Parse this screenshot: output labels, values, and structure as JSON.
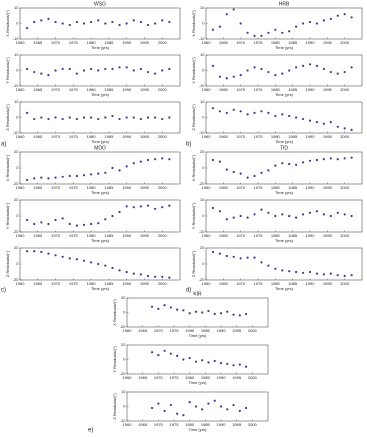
{
  "chart_data": [
    {
      "type": "scatter",
      "title": "WSG",
      "ylabel": "X Residuals/(″)",
      "xlabel": "Time (yrs)",
      "color": "#3b3b8f",
      "x": [
        1962,
        1964,
        1966,
        1968,
        1970,
        1972,
        1974,
        1976,
        1978,
        1980,
        1982,
        1984,
        1986,
        1988,
        1990,
        1992,
        1994,
        1996,
        1998,
        2000,
        2002
      ],
      "values": [
        -3,
        1,
        2,
        3,
        1,
        0,
        -1,
        1,
        0,
        1,
        2,
        0,
        1,
        -1,
        0,
        2,
        1,
        -1,
        0,
        2,
        1
      ],
      "xlim": [
        1960,
        2005
      ],
      "xticks": [
        1960,
        1965,
        1970,
        1975,
        1980,
        1985,
        1990,
        1995,
        2000
      ],
      "ylim": [
        -10,
        10
      ],
      "yticks": [
        -10,
        0,
        10
      ]
    },
    {
      "type": "scatter",
      "ylabel": "Y Residuals/(″)",
      "xlabel": "Time (yrs)",
      "color": "#3b3b8f",
      "x": [
        1962,
        1964,
        1966,
        1968,
        1970,
        1972,
        1974,
        1976,
        1978,
        1980,
        1982,
        1984,
        1986,
        1988,
        1990,
        1992,
        1994,
        1996,
        1998,
        2000,
        2002
      ],
      "values": [
        1,
        -1,
        -2,
        -3,
        0,
        1,
        1,
        -2,
        0,
        1,
        0,
        1,
        1,
        2,
        2,
        0,
        1,
        -1,
        -2,
        0,
        1
      ],
      "xlim": [
        1960,
        2005
      ],
      "xticks": [
        1960,
        1965,
        1970,
        1975,
        1980,
        1985,
        1990,
        1995,
        2000
      ],
      "ylim": [
        -10,
        10
      ],
      "yticks": [
        -10,
        0,
        10
      ]
    },
    {
      "type": "scatter",
      "panel": "a)",
      "ylabel": "Z Residuals/(″)",
      "xlabel": "Time (yrs)",
      "color": "#3b3b8f",
      "x": [
        1962,
        1964,
        1966,
        1968,
        1970,
        1972,
        1974,
        1976,
        1978,
        1980,
        1982,
        1984,
        1986,
        1988,
        1990,
        1992,
        1994,
        1996,
        1998,
        2000,
        2002
      ],
      "values": [
        3,
        -1,
        0,
        -1,
        0,
        -1,
        0,
        -1,
        0,
        0,
        -1,
        0,
        1,
        -1,
        0,
        0,
        -1,
        0,
        0,
        -1,
        0
      ],
      "xlim": [
        1960,
        2005
      ],
      "xticks": [
        1960,
        1965,
        1970,
        1975,
        1980,
        1985,
        1990,
        1995,
        2000
      ],
      "ylim": [
        -10,
        10
      ],
      "yticks": [
        -10,
        0,
        10
      ]
    },
    {
      "type": "scatter",
      "title": "HRB",
      "ylabel": "X Residuals/(″)",
      "xlabel": "Time (yrs)",
      "color": "#3b3b8f",
      "x": [
        1962,
        1964,
        1966,
        1968,
        1970,
        1972,
        1974,
        1976,
        1978,
        1980,
        1982,
        1984,
        1986,
        1988,
        1990,
        1992,
        1994,
        1996,
        1998,
        2000,
        2002
      ],
      "values": [
        -4,
        -2,
        6,
        9,
        0,
        -6,
        -8,
        -8,
        -6,
        -4,
        -6,
        -5,
        -2,
        0,
        1,
        0,
        2,
        3,
        5,
        6,
        4
      ],
      "xlim": [
        1960,
        2005
      ],
      "xticks": [
        1960,
        1965,
        1970,
        1975,
        1980,
        1985,
        1990,
        1995,
        2000
      ],
      "ylim": [
        -10,
        10
      ],
      "yticks": [
        -10,
        0,
        10
      ]
    },
    {
      "type": "scatter",
      "ylabel": "Y Residuals/(″)",
      "xlabel": "Time (yrs)",
      "color": "#3b3b8f",
      "x": [
        1962,
        1964,
        1966,
        1968,
        1970,
        1972,
        1974,
        1976,
        1978,
        1980,
        1982,
        1984,
        1986,
        1988,
        1990,
        1992,
        1994,
        1996,
        1998,
        2000,
        2002
      ],
      "values": [
        3,
        -4,
        -5,
        -4,
        -3,
        0,
        2,
        1,
        -1,
        -3,
        -2,
        0,
        2,
        3,
        4,
        3,
        1,
        -1,
        -2,
        -1,
        2
      ],
      "xlim": [
        1960,
        2005
      ],
      "xticks": [
        1960,
        1965,
        1970,
        1975,
        1980,
        1985,
        1990,
        1995,
        2000
      ],
      "ylim": [
        -10,
        10
      ],
      "yticks": [
        -10,
        0,
        10
      ]
    },
    {
      "type": "scatter",
      "panel": "b)",
      "ylabel": "Z Residuals/(″)",
      "xlabel": "Time (yrs)",
      "color": "#3b3b8f",
      "x": [
        1962,
        1964,
        1966,
        1968,
        1970,
        1972,
        1974,
        1976,
        1978,
        1980,
        1982,
        1984,
        1986,
        1988,
        1990,
        1992,
        1994,
        1996,
        1998,
        2000,
        2002
      ],
      "values": [
        6,
        4,
        3,
        5,
        4,
        2,
        3,
        4,
        3,
        1,
        2,
        1,
        0,
        -1,
        -2,
        -3,
        -4,
        -3,
        -6,
        -7,
        -8
      ],
      "xlim": [
        1960,
        2005
      ],
      "xticks": [
        1960,
        1965,
        1970,
        1975,
        1980,
        1985,
        1990,
        1995,
        2000
      ],
      "ylim": [
        -10,
        10
      ],
      "yticks": [
        -10,
        0,
        10
      ]
    },
    {
      "type": "scatter",
      "title": "MDO",
      "ylabel": "X Residuals/(″)",
      "xlabel": "Time (yrs)",
      "color": "#3b3b8f",
      "x": [
        1962,
        1964,
        1966,
        1968,
        1970,
        1972,
        1974,
        1976,
        1978,
        1980,
        1982,
        1984,
        1986,
        1988,
        1990,
        1992,
        1994,
        1996,
        1998,
        2000,
        2002
      ],
      "values": [
        -15,
        -13,
        -12,
        -13,
        -12,
        -11,
        -10,
        -10,
        -9,
        -8,
        -7,
        -6,
        0,
        -3,
        2,
        6,
        8,
        10,
        11,
        12,
        11
      ],
      "xlim": [
        1960,
        2005
      ],
      "xticks": [
        1960,
        1965,
        1970,
        1975,
        1980,
        1985,
        1990,
        1995,
        2000
      ],
      "ylim": [
        -20,
        20
      ],
      "yticks": [
        -20,
        0,
        20
      ]
    },
    {
      "type": "scatter",
      "ylabel": "Y Residuals/(″)",
      "xlabel": "Time (yrs)",
      "color": "#3b3b8f",
      "x": [
        1962,
        1964,
        1966,
        1968,
        1970,
        1972,
        1974,
        1976,
        1978,
        1980,
        1982,
        1984,
        1986,
        1988,
        1990,
        1992,
        1994,
        1996,
        1998,
        2000,
        2002
      ],
      "values": [
        -5,
        -10,
        -8,
        -10,
        -5,
        -3,
        -10,
        -12,
        -11,
        -10,
        -9,
        -4,
        0,
        5,
        12,
        11,
        12,
        13,
        9,
        11,
        13
      ],
      "xlim": [
        1960,
        2005
      ],
      "xticks": [
        1960,
        1965,
        1970,
        1975,
        1980,
        1985,
        1990,
        1995,
        2000
      ],
      "ylim": [
        -20,
        20
      ],
      "yticks": [
        -20,
        0,
        20
      ]
    },
    {
      "type": "scatter",
      "panel": "c)",
      "ylabel": "Z Residuals/(″)",
      "xlabel": "Time (yrs)",
      "color": "#3b3b8f",
      "x": [
        1962,
        1964,
        1966,
        1968,
        1970,
        1972,
        1974,
        1976,
        1978,
        1980,
        1982,
        1984,
        1986,
        1988,
        1990,
        1992,
        1994,
        1996,
        1998,
        2000,
        2002
      ],
      "values": [
        16,
        16,
        15,
        13,
        11,
        9,
        7,
        6,
        4,
        2,
        0,
        -2,
        -5,
        -8,
        -10,
        -12,
        -13,
        -15,
        -16,
        -16,
        -17
      ],
      "xlim": [
        1960,
        2005
      ],
      "xticks": [
        1960,
        1965,
        1970,
        1975,
        1980,
        1985,
        1990,
        1995,
        2000
      ],
      "ylim": [
        -20,
        20
      ],
      "yticks": [
        -20,
        0,
        20
      ]
    },
    {
      "type": "scatter",
      "title": "TID",
      "ylabel": "X Residuals/(″)",
      "xlabel": "Time (yrs)",
      "color": "#3b3b8f",
      "x": [
        1962,
        1964,
        1966,
        1968,
        1970,
        1972,
        1974,
        1976,
        1978,
        1980,
        1982,
        1984,
        1986,
        1988,
        1990,
        1992,
        1994,
        1996,
        1998,
        2000,
        2002
      ],
      "values": [
        10,
        8,
        -2,
        -5,
        -7,
        -12,
        -10,
        -6,
        -3,
        3,
        6,
        5,
        4,
        7,
        9,
        10,
        11,
        12,
        11,
        12,
        13
      ],
      "xlim": [
        1960,
        2005
      ],
      "xticks": [
        1960,
        1965,
        1970,
        1975,
        1980,
        1985,
        1990,
        1995,
        2000
      ],
      "ylim": [
        -20,
        20
      ],
      "yticks": [
        -20,
        0,
        20
      ]
    },
    {
      "type": "scatter",
      "ylabel": "Y Residuals/(″)",
      "xlabel": "Time (yrs)",
      "color": "#3b3b8f",
      "x": [
        1962,
        1964,
        1966,
        1968,
        1970,
        1972,
        1974,
        1976,
        1978,
        1980,
        1982,
        1984,
        1986,
        1988,
        1990,
        1992,
        1994,
        1996,
        1998,
        2000,
        2002
      ],
      "values": [
        5,
        3,
        -2,
        -1,
        0,
        -1,
        1,
        4,
        2,
        0,
        1,
        0,
        -1,
        1,
        2,
        3,
        1,
        0,
        2,
        1,
        0
      ],
      "xlim": [
        1960,
        2005
      ],
      "xticks": [
        1960,
        1965,
        1970,
        1975,
        1980,
        1985,
        1990,
        1995,
        2000
      ],
      "ylim": [
        -10,
        10
      ],
      "yticks": [
        -10,
        0,
        10
      ]
    },
    {
      "type": "scatter",
      "panel": "d)",
      "ylabel": "Z Residuals/(″)",
      "xlabel": "Time (yrs)",
      "color": "#3b3b8f",
      "x": [
        1962,
        1964,
        1966,
        1968,
        1970,
        1972,
        1974,
        1976,
        1978,
        1980,
        1982,
        1984,
        1986,
        1988,
        1990,
        1992,
        1994,
        1996,
        1998,
        2000,
        2002
      ],
      "values": [
        15,
        13,
        10,
        9,
        7,
        8,
        8,
        2,
        -2,
        -6,
        -8,
        -9,
        -10,
        -11,
        -10,
        -12,
        -13,
        -12,
        -14,
        -15,
        -14
      ],
      "xlim": [
        1960,
        2005
      ],
      "xticks": [
        1960,
        1965,
        1970,
        1975,
        1980,
        1985,
        1990,
        1995,
        2000
      ],
      "ylim": [
        -20,
        20
      ],
      "yticks": [
        -20,
        0,
        20
      ]
    },
    {
      "type": "scatter",
      "title": "KIR",
      "ylabel": "X Residuals/(″)",
      "xlabel": "Time (yrs)",
      "color": "#3b3b8f",
      "x": [
        1962,
        1964,
        1966,
        1968,
        1970,
        1972,
        1974,
        1976,
        1978,
        1980,
        1982,
        1984,
        1986,
        1988,
        1990,
        1992,
        1994,
        1996,
        1998,
        2000,
        2002
      ],
      "values": [
        null,
        null,
        null,
        8,
        5,
        10,
        7,
        4,
        3,
        -1,
        1,
        0,
        2,
        -2,
        -1,
        1,
        -3,
        -4,
        -2,
        null,
        null
      ],
      "xlim": [
        1960,
        2005
      ],
      "xticks": [
        1960,
        1965,
        1970,
        1975,
        1980,
        1985,
        1990,
        1995,
        2000
      ],
      "ylim": [
        -20,
        20
      ],
      "yticks": [
        -20,
        0,
        20
      ]
    },
    {
      "type": "scatter",
      "ylabel": "Y Residuals/(″)",
      "xlabel": "Time (yrs)",
      "color": "#3b3b8f",
      "x": [
        1962,
        1964,
        1966,
        1968,
        1970,
        1972,
        1974,
        1976,
        1978,
        1980,
        1982,
        1984,
        1986,
        1988,
        1990,
        1992,
        1994,
        1996,
        1998,
        2000,
        2002
      ],
      "values": [
        null,
        null,
        null,
        10,
        6,
        12,
        8,
        5,
        0,
        2,
        -3,
        -1,
        -4,
        -2,
        -5,
        -6,
        -8,
        -7,
        -10,
        null,
        null
      ],
      "xlim": [
        1960,
        2005
      ],
      "xticks": [
        1960,
        1965,
        1970,
        1975,
        1980,
        1985,
        1990,
        1995,
        2000
      ],
      "ylim": [
        -20,
        20
      ],
      "yticks": [
        -20,
        0,
        20
      ]
    },
    {
      "type": "scatter",
      "panel": "e)",
      "ylabel": "Z Residuals/(″)",
      "xlabel": "Time (yrs)",
      "color": "#3b3b8f",
      "x": [
        1962,
        1964,
        1966,
        1968,
        1970,
        1972,
        1974,
        1976,
        1978,
        1980,
        1982,
        1984,
        1986,
        1988,
        1990,
        1992,
        1994,
        1996,
        1998,
        2000,
        2002
      ],
      "values": [
        null,
        null,
        null,
        -1,
        2,
        -3,
        1,
        -5,
        -6,
        3,
        0,
        -2,
        2,
        4,
        0,
        -2,
        1,
        -3,
        -1,
        null,
        null
      ],
      "xlim": [
        1960,
        2005
      ],
      "xticks": [
        1960,
        1965,
        1970,
        1975,
        1980,
        1985,
        1990,
        1995,
        2000
      ],
      "ylim": [
        -10,
        10
      ],
      "yticks": [
        -10,
        0,
        10
      ]
    }
  ]
}
